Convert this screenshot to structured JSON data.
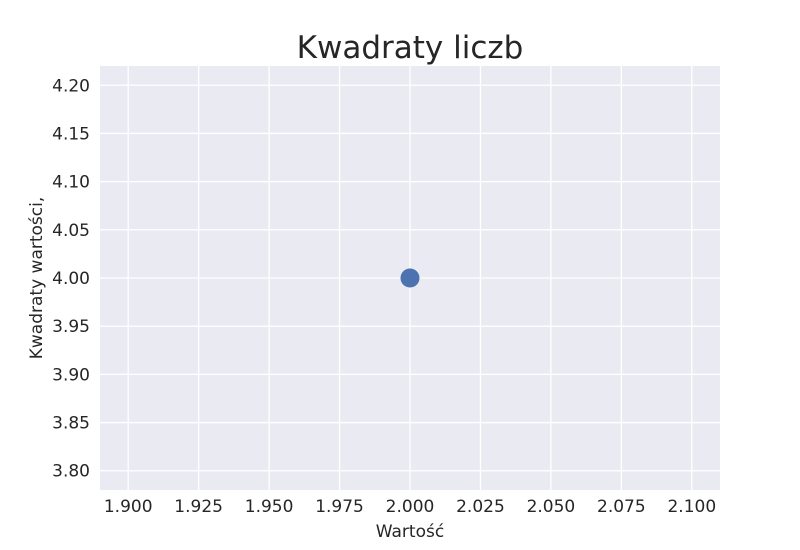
{
  "chart_data": {
    "type": "scatter",
    "title": "Kwadraty liczb",
    "xlabel": "Wartość",
    "ylabel": "Kwadraty wartości,",
    "xlim": [
      1.89,
      2.11
    ],
    "ylim": [
      3.78,
      4.22
    ],
    "xticks": [
      "1.900",
      "1.925",
      "1.950",
      "1.975",
      "2.000",
      "2.025",
      "2.050",
      "2.075",
      "2.100"
    ],
    "yticks": [
      "3.80",
      "3.85",
      "3.90",
      "3.95",
      "4.00",
      "4.05",
      "4.10",
      "4.15",
      "4.20"
    ],
    "grid": true,
    "series": [
      {
        "x": [
          2.0
        ],
        "y": [
          4.0
        ],
        "color": "#4c72b0"
      }
    ]
  }
}
